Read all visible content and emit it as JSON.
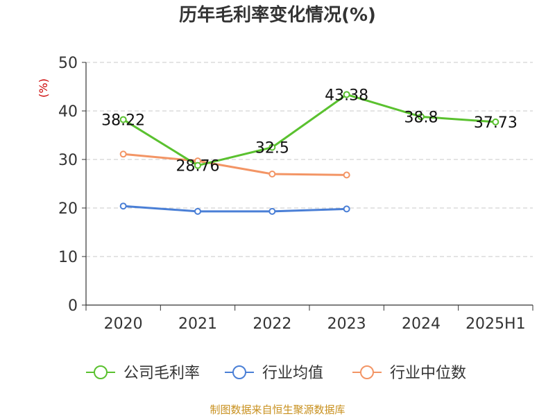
{
  "chart_data": {
    "type": "line",
    "title": "历年毛利率变化情况(%)",
    "ylabel": "(%)",
    "categories": [
      "2020",
      "2021",
      "2022",
      "2023",
      "2024",
      "2025H1"
    ],
    "ylim": [
      0,
      50
    ],
    "yticks": [
      0,
      10,
      20,
      30,
      40,
      50
    ],
    "grid": "horizontal dashed",
    "legend_position": "bottom",
    "series": [
      {
        "name": "公司毛利率",
        "color": "#5ac12f",
        "values": [
          38.22,
          28.76,
          32.5,
          43.38,
          38.8,
          37.73
        ],
        "labels": [
          "38.22",
          "28.76",
          "32.5",
          "43.38",
          "38.8",
          "37.73"
        ]
      },
      {
        "name": "行业均值",
        "color": "#4a7fd6",
        "values": [
          20.4,
          19.3,
          19.3,
          19.8,
          null,
          null
        ]
      },
      {
        "name": "行业中位数",
        "color": "#f39565",
        "values": [
          31.1,
          29.7,
          27.0,
          26.8,
          null,
          null
        ]
      }
    ]
  },
  "footer": {
    "source": "制图数据来自恒生聚源数据库"
  }
}
